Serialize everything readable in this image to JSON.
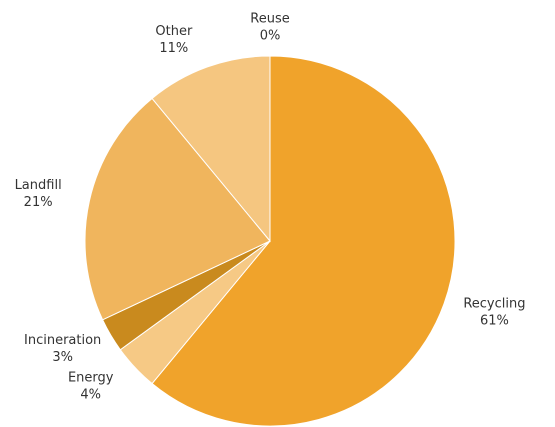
{
  "chart_data": {
    "type": "pie",
    "categories": [
      "Recycling",
      "Energy",
      "Incineration",
      "Landfill",
      "Other",
      "Reuse"
    ],
    "values": [
      61,
      4,
      3,
      21,
      11,
      0
    ],
    "value_labels": [
      "61%",
      "4%",
      "3%",
      "21%",
      "11%",
      "0%"
    ],
    "colors": [
      "#f0a32b",
      "#f6c985",
      "#c98a1e",
      "#f0b55d",
      "#f5c680",
      "#f5c680"
    ]
  }
}
